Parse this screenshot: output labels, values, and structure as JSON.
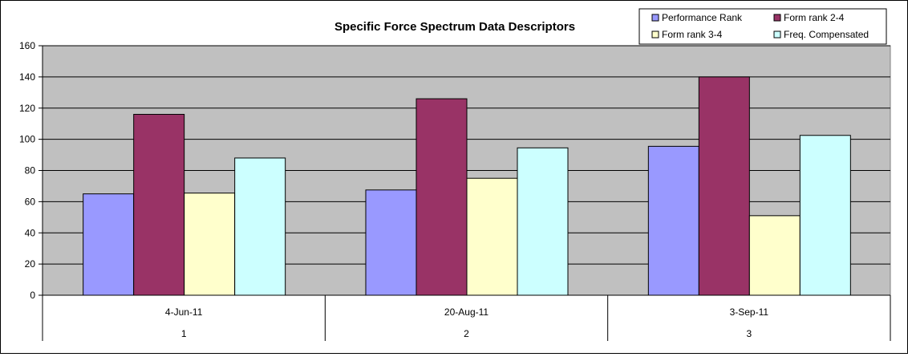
{
  "chart_data": {
    "type": "bar",
    "title": "Specific Force Spectrum Data Descriptors",
    "xlabel": "",
    "ylabel": "",
    "ylim": [
      0,
      160
    ],
    "yticks": [
      "0",
      "20",
      "40",
      "60",
      "80",
      "100",
      "120",
      "140",
      "160"
    ],
    "categories": [
      "4-Jun-11",
      "20-Aug-11",
      "3-Sep-11"
    ],
    "category_numbers": [
      "1",
      "2",
      "3"
    ],
    "grid": true,
    "legend_position": "top-right",
    "plot_background": "#c0c0c0",
    "series": [
      {
        "name": "Performance Rank",
        "color": "#9999ff",
        "values": [
          65,
          67.5,
          95.5
        ]
      },
      {
        "name": "Form rank 2-4",
        "color": "#993366",
        "values": [
          116,
          126,
          140
        ]
      },
      {
        "name": "Form rank 3-4",
        "color": "#ffffcc",
        "values": [
          65.5,
          75,
          51
        ]
      },
      {
        "name": "Freq. Compensated",
        "color": "#ccffff",
        "values": [
          88,
          94.5,
          102.5
        ]
      }
    ]
  }
}
